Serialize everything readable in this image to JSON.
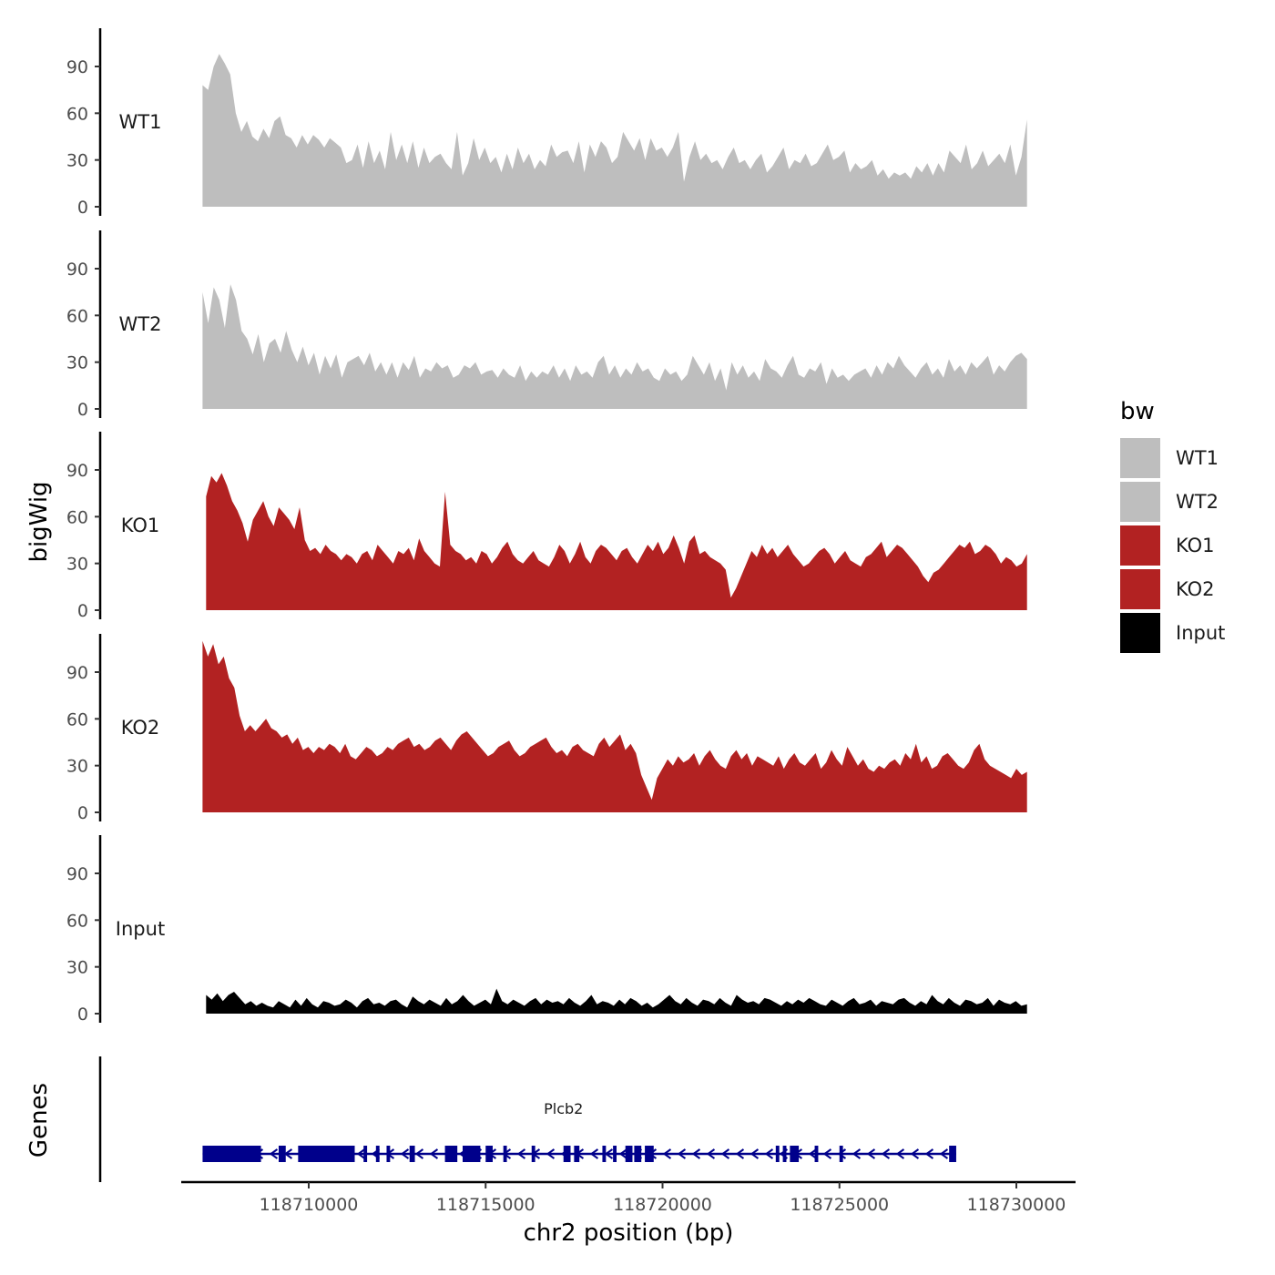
{
  "chart_data": {
    "type": "area",
    "description_tracks": "genome browser coverage tracks",
    "ylabel": "bigWig",
    "xlabel": "chr2 position (bp)",
    "ylim": [
      0,
      110
    ],
    "y_ticks": [
      0,
      30,
      60,
      90
    ],
    "xlim": [
      118705500,
      118730800
    ],
    "x_ticks": [
      118710000,
      118715000,
      118720000,
      118725000,
      118730000
    ],
    "x_tick_labels": [
      "118710000",
      "118715000",
      "118720000",
      "118725000",
      "118730000"
    ],
    "y_tick_labels": [
      "0",
      "30",
      "60",
      "90"
    ],
    "legend": {
      "title": "bw",
      "entries": [
        {
          "name": "WT1",
          "color": "#bebebe"
        },
        {
          "name": "WT2",
          "color": "#bebebe"
        },
        {
          "name": "KO1",
          "color": "#b22222"
        },
        {
          "name": "KO2",
          "color": "#b22222"
        },
        {
          "name": "Input",
          "color": "#000000"
        }
      ]
    },
    "series": [
      {
        "name": "WT1",
        "color": "#bebebe",
        "x_start": 118707000,
        "x_end": 118730300,
        "values": [
          78,
          75,
          90,
          98,
          92,
          85,
          60,
          48,
          55,
          45,
          42,
          50,
          44,
          55,
          58,
          46,
          44,
          38,
          46,
          40,
          46,
          43,
          38,
          44,
          41,
          38,
          28,
          30,
          40,
          25,
          42,
          28,
          36,
          24,
          48,
          30,
          40,
          28,
          42,
          25,
          38,
          28,
          32,
          34,
          28,
          24,
          48,
          20,
          28,
          44,
          30,
          38,
          28,
          32,
          22,
          34,
          24,
          38,
          28,
          34,
          24,
          30,
          26,
          40,
          32,
          35,
          36,
          28,
          42,
          22,
          40,
          32,
          42,
          38,
          28,
          32,
          48,
          42,
          36,
          44,
          30,
          44,
          36,
          38,
          32,
          38,
          48,
          16,
          32,
          42,
          30,
          34,
          28,
          30,
          24,
          32,
          38,
          28,
          30,
          24,
          30,
          34,
          22,
          26,
          32,
          38,
          24,
          30,
          28,
          34,
          26,
          28,
          34,
          40,
          30,
          32,
          36,
          22,
          28,
          24,
          26,
          30,
          20,
          24,
          18,
          22,
          20,
          22,
          18,
          26,
          22,
          28,
          20,
          28,
          22,
          36,
          32,
          28,
          40,
          24,
          28,
          36,
          26,
          30,
          34,
          28,
          40,
          20,
          32,
          56
        ]
      },
      {
        "name": "WT2",
        "color": "#bebebe",
        "x_start": 118707000,
        "x_end": 118730300,
        "values": [
          75,
          55,
          78,
          70,
          52,
          80,
          70,
          50,
          45,
          35,
          48,
          30,
          42,
          45,
          36,
          50,
          38,
          30,
          40,
          28,
          36,
          22,
          34,
          26,
          35,
          20,
          30,
          32,
          34,
          28,
          36,
          24,
          30,
          22,
          30,
          20,
          30,
          25,
          34,
          20,
          26,
          24,
          30,
          26,
          28,
          20,
          22,
          28,
          26,
          30,
          22,
          24,
          25,
          20,
          26,
          22,
          20,
          28,
          18,
          24,
          20,
          24,
          22,
          28,
          20,
          26,
          18,
          28,
          22,
          24,
          20,
          30,
          34,
          22,
          28,
          20,
          26,
          22,
          30,
          24,
          26,
          20,
          18,
          26,
          22,
          24,
          18,
          22,
          34,
          28,
          22,
          30,
          18,
          26,
          12,
          30,
          22,
          28,
          20,
          24,
          18,
          32,
          26,
          24,
          20,
          28,
          34,
          22,
          20,
          26,
          24,
          30,
          16,
          26,
          20,
          22,
          18,
          22,
          24,
          26,
          20,
          28,
          22,
          30,
          26,
          34,
          28,
          24,
          20,
          26,
          30,
          22,
          26,
          20,
          32,
          24,
          28,
          22,
          30,
          26,
          30,
          34,
          22,
          28,
          24,
          30,
          34,
          36,
          32
        ]
      },
      {
        "name": "KO1",
        "color": "#b22222",
        "x_start": 118707100,
        "x_end": 118730300,
        "values": [
          73,
          86,
          82,
          88,
          80,
          70,
          64,
          56,
          44,
          58,
          64,
          70,
          60,
          54,
          66,
          62,
          58,
          52,
          66,
          45,
          38,
          40,
          36,
          42,
          38,
          36,
          32,
          36,
          34,
          30,
          36,
          38,
          32,
          42,
          38,
          34,
          30,
          38,
          36,
          40,
          32,
          46,
          38,
          34,
          30,
          28,
          76,
          42,
          38,
          36,
          32,
          34,
          30,
          38,
          36,
          30,
          34,
          40,
          44,
          36,
          32,
          30,
          34,
          38,
          32,
          30,
          28,
          34,
          42,
          38,
          30,
          36,
          44,
          34,
          30,
          38,
          42,
          40,
          36,
          32,
          38,
          40,
          34,
          30,
          36,
          42,
          38,
          44,
          36,
          40,
          48,
          40,
          30,
          44,
          48,
          36,
          38,
          34,
          32,
          30,
          26,
          8,
          14,
          22,
          30,
          38,
          34,
          42,
          36,
          40,
          34,
          38,
          42,
          36,
          32,
          28,
          30,
          34,
          38,
          40,
          36,
          30,
          34,
          38,
          32,
          30,
          28,
          34,
          36,
          40,
          44,
          34,
          38,
          42,
          40,
          36,
          32,
          28,
          22,
          18,
          24,
          26,
          30,
          34,
          38,
          42,
          40,
          44,
          36,
          38,
          42,
          40,
          36,
          30,
          34,
          32,
          28,
          30,
          36
        ]
      },
      {
        "name": "KO2",
        "color": "#b22222",
        "x_start": 118707000,
        "x_end": 118730300,
        "values": [
          110,
          100,
          108,
          95,
          100,
          86,
          80,
          62,
          52,
          56,
          52,
          56,
          60,
          54,
          52,
          48,
          50,
          44,
          48,
          40,
          42,
          38,
          42,
          40,
          44,
          42,
          38,
          44,
          36,
          34,
          38,
          42,
          40,
          36,
          38,
          42,
          40,
          44,
          46,
          48,
          42,
          44,
          40,
          42,
          46,
          48,
          44,
          40,
          46,
          50,
          52,
          48,
          44,
          40,
          36,
          38,
          42,
          44,
          46,
          40,
          36,
          38,
          42,
          44,
          46,
          48,
          42,
          38,
          40,
          36,
          42,
          44,
          40,
          38,
          36,
          44,
          48,
          42,
          46,
          50,
          40,
          44,
          38,
          24,
          16,
          8,
          22,
          28,
          34,
          30,
          36,
          32,
          34,
          38,
          30,
          36,
          40,
          34,
          30,
          28,
          36,
          40,
          34,
          38,
          30,
          36,
          34,
          32,
          30,
          36,
          28,
          34,
          38,
          32,
          30,
          34,
          38,
          28,
          32,
          40,
          34,
          30,
          42,
          36,
          30,
          34,
          28,
          26,
          30,
          28,
          32,
          34,
          30,
          38,
          34,
          44,
          32,
          36,
          28,
          30,
          36,
          38,
          34,
          30,
          28,
          32,
          40,
          44,
          34,
          30,
          28,
          26,
          24,
          22,
          28,
          24,
          26
        ]
      },
      {
        "name": "Input",
        "color": "#000000",
        "x_start": 118707100,
        "x_end": 118730300,
        "values": [
          12,
          9,
          13,
          8,
          12,
          14,
          10,
          6,
          8,
          5,
          7,
          5,
          4,
          8,
          6,
          4,
          9,
          5,
          10,
          6,
          4,
          8,
          7,
          5,
          6,
          9,
          7,
          4,
          8,
          10,
          6,
          7,
          5,
          8,
          9,
          6,
          4,
          11,
          8,
          6,
          9,
          7,
          5,
          10,
          6,
          8,
          12,
          8,
          5,
          7,
          9,
          6,
          16,
          8,
          6,
          9,
          7,
          5,
          8,
          10,
          6,
          9,
          7,
          8,
          6,
          10,
          7,
          5,
          8,
          12,
          6,
          8,
          7,
          5,
          9,
          6,
          10,
          8,
          5,
          7,
          4,
          6,
          9,
          12,
          8,
          6,
          10,
          7,
          5,
          9,
          8,
          6,
          10,
          7,
          5,
          12,
          9,
          7,
          8,
          6,
          10,
          9,
          7,
          5,
          8,
          6,
          9,
          7,
          10,
          8,
          6,
          5,
          9,
          7,
          5,
          8,
          10,
          6,
          7,
          9,
          5,
          8,
          7,
          6,
          9,
          10,
          7,
          5,
          8,
          6,
          12,
          8,
          6,
          10,
          7,
          5,
          9,
          8,
          6,
          7,
          10,
          5,
          9,
          7,
          6,
          8,
          5,
          6
        ]
      }
    ],
    "genes": {
      "track_label": "Genes",
      "name": "Plcb2",
      "strand": "-",
      "color": "#00008b",
      "start": 118707000,
      "end": 118728300,
      "exons": [
        [
          118707000,
          118708650
        ],
        [
          118709150,
          118709350
        ],
        [
          118709700,
          118711300
        ],
        [
          118711550,
          118711650
        ],
        [
          118711900,
          118712000
        ],
        [
          118712200,
          118712300
        ],
        [
          118712850,
          118713000
        ],
        [
          118713850,
          118714200
        ],
        [
          118714350,
          118714850
        ],
        [
          118715000,
          118715200
        ],
        [
          118715500,
          118715600
        ],
        [
          118716300,
          118716400
        ],
        [
          118717200,
          118717400
        ],
        [
          118717500,
          118717650
        ],
        [
          118718300,
          118718400
        ],
        [
          118718600,
          118718700
        ],
        [
          118718950,
          118719150
        ],
        [
          118719200,
          118719400
        ],
        [
          118719500,
          118719750
        ],
        [
          118723200,
          118723300
        ],
        [
          118723400,
          118723500
        ],
        [
          118723600,
          118723850
        ],
        [
          118724300,
          118724400
        ],
        [
          118725000,
          118725100
        ],
        [
          118728100,
          118728300
        ]
      ]
    }
  }
}
